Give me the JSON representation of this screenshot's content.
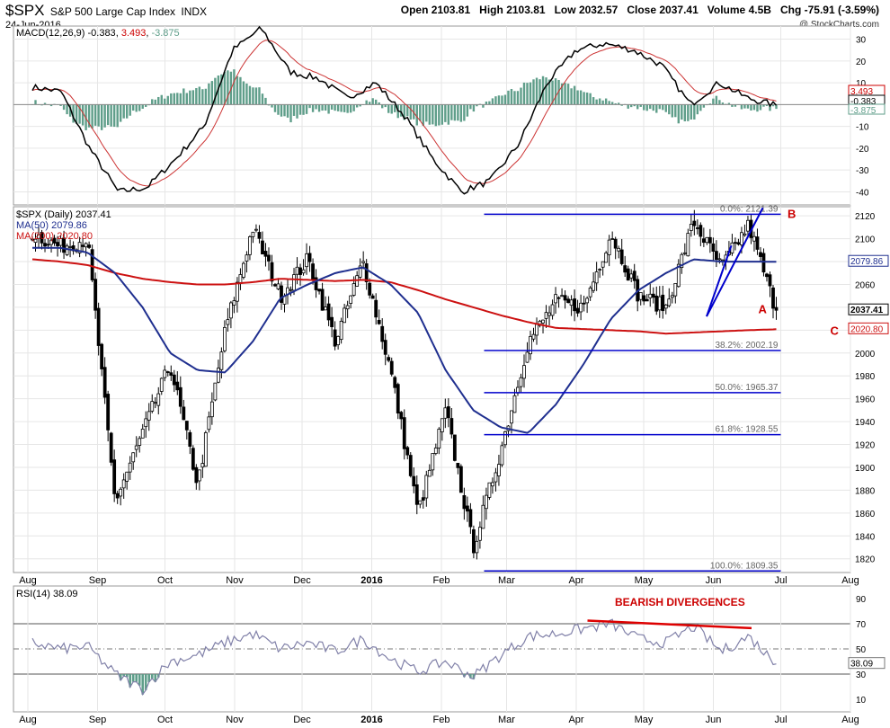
{
  "header": {
    "symbol": "$SPX",
    "name": "S&P 500 Large Cap Index",
    "exchange": "INDX",
    "date": "24-Jun-2016",
    "open_label": "Open",
    "open": "2103.81",
    "high_label": "High",
    "high": "2103.81",
    "low_label": "Low",
    "low": "2032.57",
    "close_label": "Close",
    "close": "2037.41",
    "volume_label": "Volume",
    "volume": "4.5B",
    "chg_label": "Chg",
    "chg": "-75.91 (-3.59%)",
    "watermark": "@ StockCharts.com"
  },
  "x_axis": {
    "months": [
      {
        "label": "Aug",
        "bold": false,
        "day": 0
      },
      {
        "label": "Sep",
        "bold": false,
        "day": 31
      },
      {
        "label": "Oct",
        "bold": false,
        "day": 61
      },
      {
        "label": "Nov",
        "bold": false,
        "day": 92
      },
      {
        "label": "Dec",
        "bold": false,
        "day": 122
      },
      {
        "label": "2016",
        "bold": true,
        "day": 153
      },
      {
        "label": "Feb",
        "bold": false,
        "day": 184
      },
      {
        "label": "Mar",
        "bold": false,
        "day": 213
      },
      {
        "label": "Apr",
        "bold": false,
        "day": 244
      },
      {
        "label": "May",
        "bold": false,
        "day": 274
      },
      {
        "label": "Jun",
        "bold": false,
        "day": 305
      },
      {
        "label": "Jul",
        "bold": false,
        "day": 335
      },
      {
        "label": "Aug",
        "bold": false,
        "day": 366
      }
    ]
  },
  "colors": {
    "price": "#000000",
    "ma50": "#1f2f8f",
    "ma200": "#cc1111",
    "fib": "#0000cc",
    "annotation": "#cc0000",
    "histogram": "#5f9e8a",
    "macd_signal": "#cc3333",
    "rsi": "#8080a8",
    "grid": "#e6e6e6"
  },
  "macd_panel": {
    "legend": "MACD(12,26,9) -0.383, 3.493, -3.875",
    "legend_values": [
      {
        "text": "-0.383",
        "color": "#000000"
      },
      {
        "text": "3.493",
        "color": "#cc0000"
      },
      {
        "text": "-3.875",
        "color": "#5f9e8a"
      }
    ],
    "legend_prefix": "MACD(12,26,9)",
    "ticks": [
      "30",
      "20",
      "10",
      "0",
      "-10",
      "-20",
      "-30",
      "-40"
    ],
    "ylim": [
      -46,
      36
    ],
    "value_tags": [
      {
        "text": "3.493",
        "value": 3.493,
        "color": "#cc0000"
      },
      {
        "text": "-0.383",
        "value": -0.383,
        "color": "#000000"
      },
      {
        "text": "-3.875",
        "value": -3.875,
        "color": "#5f9e8a"
      }
    ]
  },
  "price_panel": {
    "legend_main": "$SPX (Daily) 2037.41",
    "legend_ma50": "MA(50) 2079.86",
    "legend_ma200": "MA(200) 2020.80",
    "ticks": [
      "2120",
      "2100",
      "2080",
      "2060",
      "2040",
      "2020",
      "2000",
      "1980",
      "1960",
      "1940",
      "1920",
      "1900",
      "1880",
      "1860",
      "1840",
      "1820"
    ],
    "ylim": [
      1808,
      2128
    ],
    "value_tags": [
      {
        "text": "2079.86",
        "value": 2079.86,
        "color": "#1f2f8f",
        "bold": false
      },
      {
        "text": "2037.41",
        "value": 2037.41,
        "color": "#000000",
        "bold": true
      },
      {
        "text": "2020.80",
        "value": 2020.8,
        "color": "#cc1111",
        "bold": false
      }
    ],
    "fib_levels": [
      {
        "label": "0.0%: 2121.39",
        "value": 2121.39
      },
      {
        "label": "38.2%: 2002.19",
        "value": 2002.19
      },
      {
        "label": "50.0%: 1965.37",
        "value": 1965.37
      },
      {
        "label": "61.8%: 1928.55",
        "value": 1928.55
      },
      {
        "label": "100.0%: 1809.35",
        "value": 1809.35
      }
    ],
    "fib_start_day": 203,
    "fib_end_day": 335,
    "annotations": [
      {
        "text": "A",
        "day": 325,
        "value": 2035
      },
      {
        "text": "B",
        "day": 338,
        "value": 2118
      },
      {
        "text": "C",
        "day": 357,
        "value": 2016
      }
    ],
    "wedge": [
      {
        "day": 302,
        "value": 2032
      },
      {
        "day": 327,
        "value": 2127
      },
      {
        "day": 291,
        "value": 2050
      }
    ]
  },
  "rsi_panel": {
    "legend": "RSI(14) 38.09",
    "ticks": [
      "90",
      "70",
      "50",
      "30",
      "10"
    ],
    "ylim": [
      0,
      100
    ],
    "overbought": 70,
    "oversold": 30,
    "mid": 50,
    "value_tag": {
      "text": "38.09",
      "value": 38.09
    },
    "annotation": "BEARISH DIVERGENCES",
    "divergence_line": [
      {
        "day": 249,
        "value": 72.5
      },
      {
        "day": 322,
        "value": 66.5
      }
    ]
  },
  "chart_data": {
    "type": "line",
    "title": "$SPX S&P 500 Large Cap Index INDX",
    "xlabel": "",
    "ylabel": "",
    "x_dates": [
      "2015-07-20",
      "2015-08-06",
      "2015-08-18",
      "2015-08-25",
      "2015-09-04",
      "2015-09-17",
      "2015-09-29",
      "2015-10-15",
      "2015-11-03",
      "2015-11-13",
      "2015-11-30",
      "2015-12-14",
      "2015-12-29",
      "2016-01-07",
      "2016-01-20",
      "2016-02-01",
      "2016-02-11",
      "2016-02-22",
      "2016-03-04",
      "2016-03-21",
      "2016-04-05",
      "2016-04-20",
      "2016-05-06",
      "2016-05-19",
      "2016-06-08",
      "2016-06-16",
      "2016-06-23",
      "2016-06-24"
    ],
    "series": [
      {
        "name": "$SPX (Daily)",
        "values": [
          2105,
          2093,
          2100,
          1870,
          1930,
          1990,
          1885,
          2020,
          2110,
          2050,
          2082,
          2010,
          2080,
          1985,
          1860,
          1950,
          1830,
          1915,
          2010,
          2045,
          2040,
          2105,
          2050,
          2040,
          2115,
          2075,
          2112,
          2037
        ]
      },
      {
        "name": "MA(50)",
        "values": [
          2092,
          2092,
          2088,
          2070,
          2040,
          2000,
          1985,
          1983,
          2010,
          2048,
          2060,
          2070,
          2075,
          2060,
          2035,
          1985,
          1950,
          1935,
          1930,
          1955,
          1990,
          2030,
          2055,
          2070,
          2082,
          2080,
          2080,
          2079.86
        ]
      },
      {
        "name": "MA(200)",
        "values": [
          2082,
          2080,
          2077,
          2070,
          2065,
          2062,
          2060,
          2060,
          2062,
          2065,
          2064,
          2063,
          2064,
          2062,
          2055,
          2047,
          2040,
          2033,
          2027,
          2022,
          2021,
          2020,
          2019,
          2017,
          2018,
          2019,
          2020,
          2020.8
        ]
      }
    ],
    "ylim": [
      1808,
      2128
    ]
  }
}
